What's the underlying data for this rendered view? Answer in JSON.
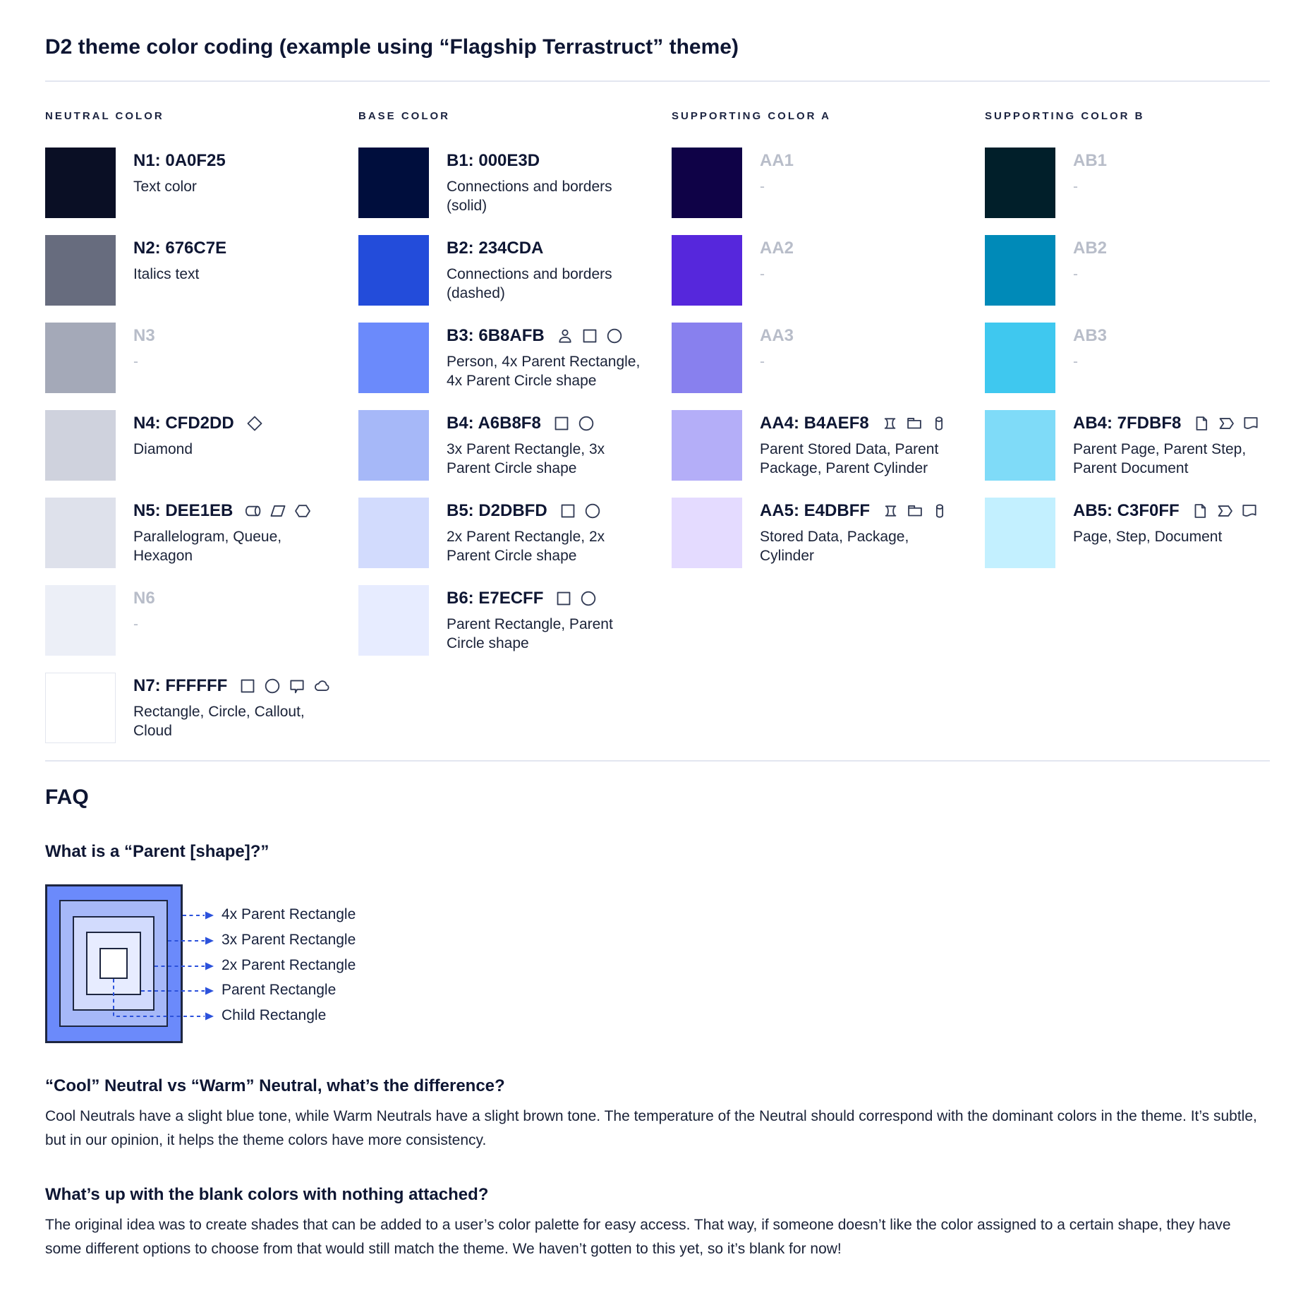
{
  "page": {
    "title": "D2 theme color coding (example using “Flagship Terrastruct” theme)"
  },
  "columns": [
    {
      "header": "NEUTRAL COLOR",
      "rows": [
        {
          "code": "N1: 0A0F25",
          "swatch": "#0A0F25",
          "desc": "Text color",
          "muted": false,
          "icons": []
        },
        {
          "code": "N2: 676C7E",
          "swatch": "#676C7E",
          "desc": "Italics text",
          "muted": false,
          "icons": []
        },
        {
          "code": "N3",
          "swatch": "#A4A9B8",
          "desc": "-",
          "muted": true,
          "icons": []
        },
        {
          "code": "N4: CFD2DD",
          "swatch": "#CFD2DD",
          "desc": "Diamond",
          "muted": false,
          "icons": [
            "diamond"
          ]
        },
        {
          "code": "N5: DEE1EB",
          "swatch": "#DEE1EB",
          "desc": "Parallelogram, Queue, Hexagon",
          "muted": false,
          "icons": [
            "queue",
            "parallelogram",
            "hexagon"
          ]
        },
        {
          "code": "N6",
          "swatch": "#ECEFF7",
          "desc": "-",
          "muted": true,
          "icons": []
        },
        {
          "code": "N7: FFFFFF",
          "swatch": "#FFFFFF",
          "swatch_border": true,
          "desc": "Rectangle, Circle, Callout, Cloud",
          "muted": false,
          "icons": [
            "rectangle",
            "circle",
            "callout",
            "cloud"
          ]
        }
      ]
    },
    {
      "header": "BASE COLOR",
      "rows": [
        {
          "code": "B1: 000E3D",
          "swatch": "#000E3D",
          "desc": "Connections and borders (solid)",
          "muted": false,
          "icons": []
        },
        {
          "code": "B2: 234CDA",
          "swatch": "#234CDA",
          "desc": "Connections and borders (dashed)",
          "muted": false,
          "icons": []
        },
        {
          "code": "B3: 6B8AFB",
          "swatch": "#6B8AFB",
          "desc": "Person, 4x Parent Rectangle, 4x Parent Circle shape",
          "muted": false,
          "icons": [
            "person",
            "rectangle",
            "circle"
          ]
        },
        {
          "code": "B4: A6B8F8",
          "swatch": "#A6B8F8",
          "desc": "3x Parent Rectangle, 3x Parent Circle shape",
          "muted": false,
          "icons": [
            "rectangle",
            "circle"
          ]
        },
        {
          "code": "B5: D2DBFD",
          "swatch": "#D2DBFD",
          "desc": "2x Parent Rectangle, 2x Parent Circle shape",
          "muted": false,
          "icons": [
            "rectangle",
            "circle"
          ]
        },
        {
          "code": "B6: E7ECFF",
          "swatch": "#E7ECFF",
          "desc": "Parent Rectangle, Parent Circle shape",
          "muted": false,
          "icons": [
            "rectangle",
            "circle"
          ]
        }
      ]
    },
    {
      "header": "SUPPORTING COLOR A",
      "rows": [
        {
          "code": "AA1",
          "swatch": "#0F0247",
          "desc": "-",
          "muted": true,
          "icons": []
        },
        {
          "code": "AA2",
          "swatch": "#5627DC",
          "desc": "-",
          "muted": true,
          "icons": []
        },
        {
          "code": "AA3",
          "swatch": "#8880EE",
          "desc": "-",
          "muted": true,
          "icons": []
        },
        {
          "code": "AA4: B4AEF8",
          "swatch": "#B4AEF8",
          "desc": "Parent Stored Data, Parent Package,  Parent Cylinder",
          "muted": false,
          "icons": [
            "stored-data",
            "package",
            "cylinder"
          ]
        },
        {
          "code": "AA5: E4DBFF",
          "swatch": "#E4DBFF",
          "desc": "Stored Data, Package, Cylinder",
          "muted": false,
          "icons": [
            "stored-data",
            "package",
            "cylinder"
          ]
        }
      ]
    },
    {
      "header": "SUPPORTING COLOR B",
      "rows": [
        {
          "code": "AB1",
          "swatch": "#011F2A",
          "desc": "-",
          "muted": true,
          "icons": []
        },
        {
          "code": "AB2",
          "swatch": "#008AB8",
          "desc": "-",
          "muted": true,
          "icons": []
        },
        {
          "code": "AB3",
          "swatch": "#3FC8EF",
          "desc": "-",
          "muted": true,
          "icons": []
        },
        {
          "code": "AB4: 7FDBF8",
          "swatch": "#7FDBF8",
          "desc": "Parent Page, Parent Step, Parent Document",
          "muted": false,
          "icons": [
            "page",
            "step",
            "document"
          ]
        },
        {
          "code": "AB5: C3F0FF",
          "swatch": "#C3F0FF",
          "desc": "Page, Step, Document",
          "muted": false,
          "icons": [
            "page",
            "step",
            "document"
          ]
        }
      ]
    }
  ],
  "faq": {
    "heading": "FAQ",
    "q1": {
      "question": "What is a “Parent [shape]?”",
      "diagram_labels": [
        "4x Parent Rectangle",
        "3x Parent Rectangle",
        "2x Parent Rectangle",
        "Parent Rectangle",
        "Child Rectangle"
      ],
      "diagram_colors": [
        "#6B8AFB",
        "#A6B8F8",
        "#D2DBFD",
        "#E7ECFF",
        "#FFFFFF"
      ],
      "leader_color": "#2C52DC"
    },
    "q2": {
      "question": "“Cool” Neutral vs “Warm” Neutral, what’s the difference?",
      "answer": "Cool Neutrals have a slight blue tone, while Warm Neutrals have a slight brown tone. The temperature of the Neutral should correspond with the dominant colors in the theme. It’s subtle, but in our opinion, it helps the theme colors have more consistency."
    },
    "q3": {
      "question": "What’s up with the blank colors with nothing attached?",
      "answer": "The original idea was to create shades that can be added to a user’s color palette for easy access. That way, if someone doesn’t like the color assigned to a certain shape, they have some different options to choose from that would still match the theme. We haven’t gotten to this yet, so it’s blank for now!"
    }
  }
}
